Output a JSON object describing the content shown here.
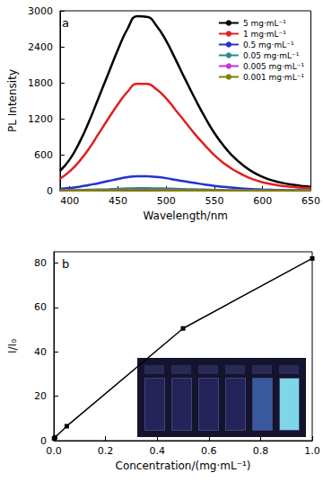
{
  "chart_data": [
    {
      "type": "line",
      "title": "a",
      "x_label": "Wavelength/nm",
      "y_label": "PL Intensity",
      "legend": "top-right",
      "x": [
        390,
        400,
        410,
        420,
        430,
        440,
        450,
        460,
        470,
        480,
        490,
        500,
        510,
        520,
        530,
        540,
        550,
        560,
        570,
        580,
        590,
        600,
        610,
        620,
        630,
        640,
        650
      ],
      "xlim": [
        390,
        650
      ],
      "xticks": [
        400,
        450,
        500,
        550,
        600,
        650
      ],
      "ylim": [
        0,
        3000
      ],
      "yticks": [
        0,
        600,
        1200,
        1800,
        2400,
        3000
      ],
      "series": [
        {
          "name": "5 mg·mL⁻¹",
          "color": "#000000",
          "values": [
            330,
            520,
            800,
            1150,
            1550,
            1950,
            2350,
            2700,
            2910,
            2900,
            2750,
            2500,
            2180,
            1850,
            1530,
            1230,
            960,
            740,
            560,
            420,
            310,
            230,
            170,
            130,
            100,
            80,
            65
          ]
        },
        {
          "name": "1 mg·mL⁻¹",
          "color": "#e02020",
          "values": [
            200,
            320,
            490,
            700,
            950,
            1200,
            1440,
            1650,
            1780,
            1780,
            1690,
            1540,
            1340,
            1140,
            940,
            760,
            590,
            455,
            345,
            260,
            190,
            140,
            105,
            80,
            62,
            50,
            40
          ]
        },
        {
          "name": "0.5 mg·mL⁻¹",
          "color": "#2233cc",
          "values": [
            30,
            45,
            65,
            95,
            125,
            160,
            195,
            225,
            240,
            240,
            228,
            208,
            180,
            153,
            127,
            102,
            80,
            62,
            47,
            35,
            26,
            19,
            14,
            11,
            8,
            7,
            5
          ]
        },
        {
          "name": "0.05 mg·mL⁻¹",
          "color": "#2a8a8a",
          "values": [
            5,
            7,
            10,
            14,
            18,
            23,
            30,
            36,
            40,
            40,
            38,
            34,
            30,
            25,
            21,
            17,
            13,
            10,
            8,
            6,
            4,
            3,
            2,
            2,
            1,
            1,
            1
          ]
        },
        {
          "name": "0.005 mg·mL⁻¹",
          "color": "#cc33cc",
          "values": [
            2,
            2,
            3,
            4,
            5,
            7,
            9,
            11,
            12,
            12,
            11,
            10,
            9,
            8,
            6,
            5,
            4,
            3,
            2,
            2,
            1,
            1,
            1,
            1,
            0,
            0,
            0
          ]
        },
        {
          "name": "0.001 mg·mL⁻¹",
          "color": "#808000",
          "values": [
            1,
            1,
            2,
            2,
            3,
            4,
            5,
            6,
            6,
            6,
            6,
            5,
            5,
            4,
            3,
            3,
            2,
            2,
            1,
            1,
            1,
            0,
            0,
            0,
            0,
            0,
            0
          ]
        }
      ]
    },
    {
      "type": "line",
      "title": "b",
      "x_label": "Concentration/(mg·mL⁻¹)",
      "y_label": "I/I₀",
      "x": [
        0.001,
        0.005,
        0.05,
        0.5,
        1.0
      ],
      "values": [
        1,
        1.5,
        6.5,
        50.5,
        82
      ],
      "color": "#000000",
      "marker": "square",
      "xlim": [
        0,
        1.0
      ],
      "xticks": [
        {
          "value": 0,
          "label": "0.0"
        },
        0.2,
        0.4,
        0.6,
        0.8,
        {
          "value": 1.0,
          "label": "1.0"
        }
      ],
      "ylim": [
        0,
        85
      ],
      "yticks": [
        0,
        20,
        40,
        60,
        80
      ]
    }
  ]
}
